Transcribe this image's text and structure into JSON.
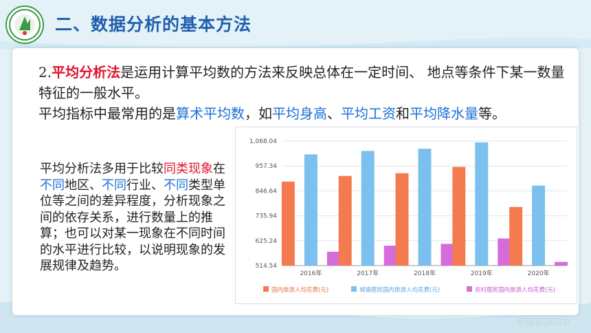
{
  "header": {
    "title": "二、数据分析的基本方法"
  },
  "para1": {
    "prefix": "2.",
    "term": "平均分析法",
    "text1": "是运用计算平均数的方法来反映总体在一定时间、 地点等条件下某一数量特征的一般水平。",
    "text2": "平均指标中最常用的是",
    "term2": "算术平均数",
    "text3": "，如",
    "ex1": "平均身高",
    "sep1": "、",
    "ex2": "平均工资",
    "and": "和",
    "ex3": "平均降水量",
    "end": "等。"
  },
  "para2": {
    "a": "平均分析法多用于比较",
    "b": "同类现象",
    "c": "在",
    "d": "不同",
    "e": "地区、",
    "f": "不同",
    "g": "行业、",
    "h": "不同",
    "i": "类型单位等之间的差异程度，分析现象之间的依存关系，进行数量上的推算；也可以对某一现象在不同时间的水平进行比较，以说明现象的发展规律及趋势。"
  },
  "watermark": "新疆新源四中",
  "colors": {
    "series1": "#f47b4f",
    "series2": "#7cc0f0",
    "series3": "#d66bdc",
    "title": "#1f5fb0",
    "accent_red": "#e0142c",
    "accent_blue": "#1a6fd6"
  },
  "chart_data": {
    "type": "bar",
    "categories": [
      "2016年",
      "2017年",
      "2018年",
      "2019年",
      "2020年"
    ],
    "series": [
      {
        "name": "国内旅游人均花费(元)",
        "values": [
          888,
          913,
          925,
          953,
          775
        ]
      },
      {
        "name": "城镇居民国内旅游人均花费(元)",
        "values": [
          1009,
          1024,
          1034,
          1062,
          870
        ]
      },
      {
        "name": "农村居民国内旅游人均花费(元)",
        "values": [
          576,
          603,
          611,
          635,
          531
        ]
      }
    ],
    "yticks": [
      "514.54",
      "625.24",
      "735.94",
      "846.64",
      "957.34",
      "1,068.04"
    ],
    "ylim": [
      514.54,
      1068.04
    ],
    "grid": true,
    "legend": "bottom"
  }
}
